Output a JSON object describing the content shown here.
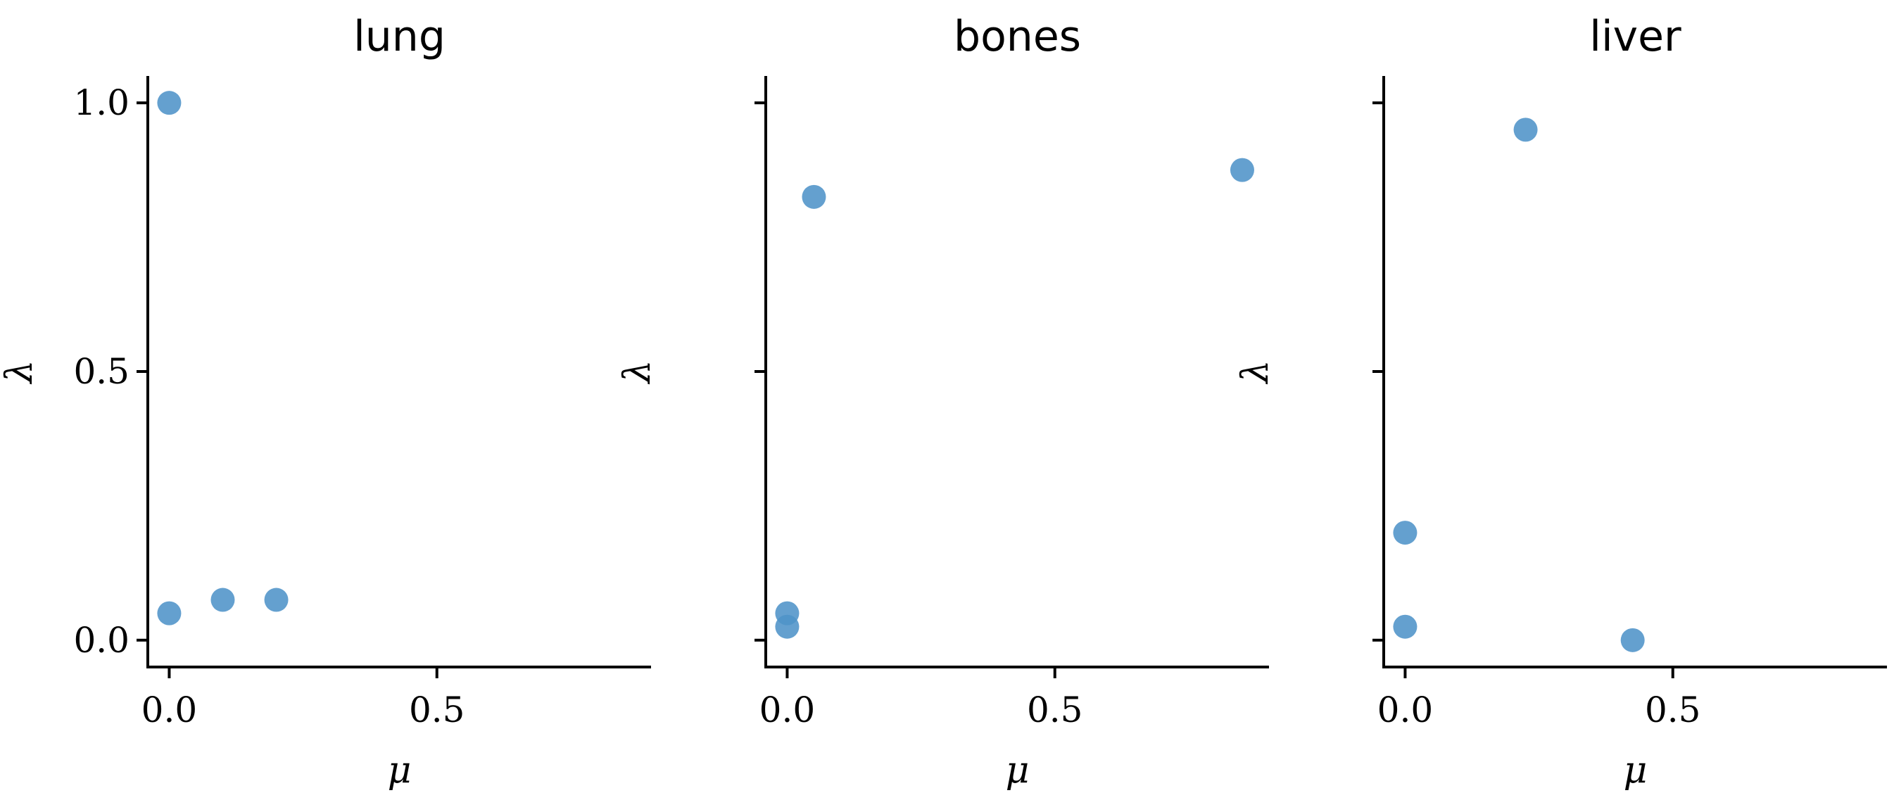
{
  "colors": {
    "marker": "#4f93c8",
    "axis": "#000000"
  },
  "chart_data": [
    {
      "type": "scatter",
      "title": "lung",
      "xlabel": "μ",
      "ylabel": "λ",
      "xlim": [
        -0.04,
        0.9
      ],
      "ylim": [
        -0.05,
        1.05
      ],
      "xticks": [
        0.0,
        0.5
      ],
      "xtick_labels": [
        "0.0",
        "0.5"
      ],
      "yticks": [
        0.0,
        0.5,
        1.0
      ],
      "ytick_labels": [
        "0.0",
        "0.5",
        "1.0"
      ],
      "grid": false,
      "points": [
        {
          "x": 0.0,
          "y": 1.0
        },
        {
          "x": 0.0,
          "y": 0.05
        },
        {
          "x": 0.1,
          "y": 0.075
        },
        {
          "x": 0.2,
          "y": 0.075
        }
      ]
    },
    {
      "type": "scatter",
      "title": "bones",
      "xlabel": "μ",
      "ylabel": "λ",
      "xlim": [
        -0.04,
        0.9
      ],
      "ylim": [
        -0.05,
        1.05
      ],
      "xticks": [
        0.0,
        0.5
      ],
      "xtick_labels": [
        "0.0",
        "0.5"
      ],
      "yticks": [
        0.0,
        0.5,
        1.0
      ],
      "ytick_labels": [
        "",
        "",
        ""
      ],
      "grid": false,
      "points": [
        {
          "x": 0.05,
          "y": 0.825
        },
        {
          "x": 0.85,
          "y": 0.875
        },
        {
          "x": 0.0,
          "y": 0.05
        },
        {
          "x": 0.0,
          "y": 0.025
        }
      ]
    },
    {
      "type": "scatter",
      "title": "liver",
      "xlabel": "μ",
      "ylabel": "λ",
      "xlim": [
        -0.04,
        0.9
      ],
      "ylim": [
        -0.05,
        1.05
      ],
      "xticks": [
        0.0,
        0.5
      ],
      "xtick_labels": [
        "0.0",
        "0.5"
      ],
      "yticks": [
        0.0,
        0.5,
        1.0
      ],
      "ytick_labels": [
        "",
        "",
        ""
      ],
      "grid": false,
      "points": [
        {
          "x": 0.225,
          "y": 0.95
        },
        {
          "x": 0.0,
          "y": 0.2
        },
        {
          "x": 0.0,
          "y": 0.025
        },
        {
          "x": 0.425,
          "y": 0.0
        }
      ]
    }
  ]
}
